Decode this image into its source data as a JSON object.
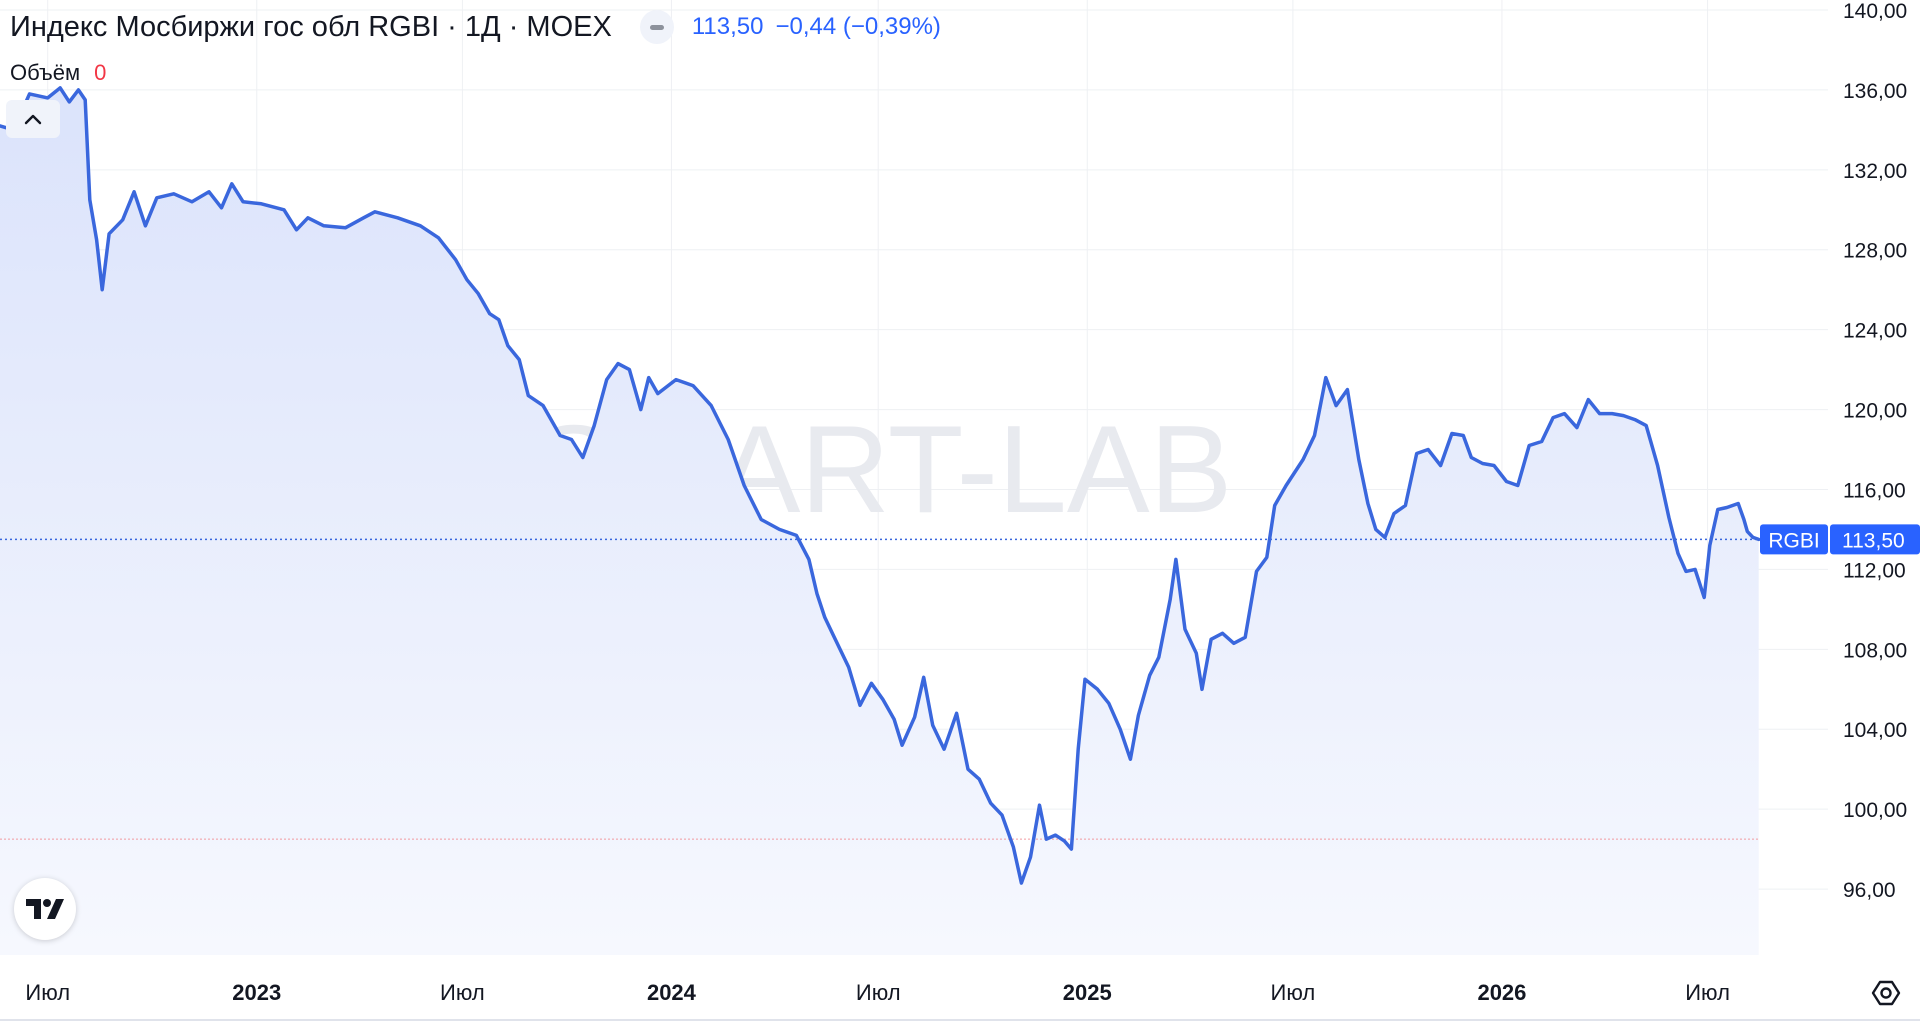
{
  "legend": {
    "title": "Индекс Мосбиржи гос обл RGBI · 1Д · MOEX",
    "last_price": "113,50",
    "change": "−0,44 (−0,39%)",
    "volume_label": "Объём",
    "volume_value": "0"
  },
  "watermark": "SMART-LAB",
  "price_axis": {
    "labels": [
      "140,00",
      "136,00",
      "132,00",
      "128,00",
      "124,00",
      "120,00",
      "116,00",
      "112,00",
      "108,00",
      "104,00",
      "100,00",
      "96,00"
    ],
    "current_symbol": "RGBI",
    "current_value": "113,50"
  },
  "time_axis": {
    "labels": [
      {
        "text": "Июл",
        "bold": false
      },
      {
        "text": "2023",
        "bold": true
      },
      {
        "text": "Июл",
        "bold": false
      },
      {
        "text": "2024",
        "bold": true
      },
      {
        "text": "Июл",
        "bold": false
      },
      {
        "text": "2025",
        "bold": true
      },
      {
        "text": "Июл",
        "bold": false
      },
      {
        "text": "2026",
        "bold": true
      },
      {
        "text": "Июл",
        "bold": false
      }
    ]
  },
  "colors": {
    "line": "#3a67dd",
    "fill_top": "#dfe6fb",
    "grid": "#eef0f3",
    "current_tag": "#2962ff",
    "reference_line": "#f29aa0",
    "text": "#131722",
    "axis_text": "#5d606b"
  },
  "icons": {
    "collapse": "chevron-up-icon",
    "logo": "tradingview-logo-icon",
    "settings": "settings-icon"
  },
  "chart_data": {
    "type": "area",
    "symbol": "RGBI",
    "interval": "1D",
    "exchange": "MOEX",
    "reference_price": 98.5,
    "ylim": [
      92.7,
      140.5
    ],
    "yticks": [
      140,
      136,
      132,
      128,
      124,
      120,
      116,
      112,
      108,
      104,
      100,
      96
    ],
    "xlim": [
      "2022-05-20",
      "2026-10-15"
    ],
    "xticks": [
      "2022-07-01",
      "2023-01-01",
      "2023-07-01",
      "2024-01-01",
      "2024-07-01",
      "2025-01-01",
      "2025-07-01",
      "2026-01-01",
      "2026-07-01"
    ],
    "series": [
      {
        "points": [
          [
            "2022-05-20",
            134.2
          ],
          [
            "2022-06-01",
            134.0
          ],
          [
            "2022-06-15",
            135.8
          ],
          [
            "2022-07-01",
            135.6
          ],
          [
            "2022-07-12",
            136.1
          ],
          [
            "2022-07-20",
            135.4
          ],
          [
            "2022-07-28",
            136.0
          ],
          [
            "2022-08-03",
            135.5
          ],
          [
            "2022-08-07",
            130.5
          ],
          [
            "2022-08-13",
            128.5
          ],
          [
            "2022-08-18",
            126.0
          ],
          [
            "2022-08-24",
            128.8
          ],
          [
            "2022-09-05",
            129.5
          ],
          [
            "2022-09-15",
            130.9
          ],
          [
            "2022-09-25",
            129.2
          ],
          [
            "2022-10-05",
            130.6
          ],
          [
            "2022-10-20",
            130.8
          ],
          [
            "2022-11-05",
            130.4
          ],
          [
            "2022-11-20",
            130.9
          ],
          [
            "2022-12-01",
            130.1
          ],
          [
            "2022-12-10",
            131.3
          ],
          [
            "2022-12-20",
            130.4
          ],
          [
            "2023-01-05",
            130.3
          ],
          [
            "2023-01-25",
            130.0
          ],
          [
            "2023-02-05",
            129.0
          ],
          [
            "2023-02-15",
            129.6
          ],
          [
            "2023-03-01",
            129.2
          ],
          [
            "2023-03-20",
            129.1
          ],
          [
            "2023-04-05",
            129.6
          ],
          [
            "2023-04-15",
            129.9
          ],
          [
            "2023-05-05",
            129.6
          ],
          [
            "2023-05-25",
            129.2
          ],
          [
            "2023-06-10",
            128.6
          ],
          [
            "2023-06-25",
            127.5
          ],
          [
            "2023-07-05",
            126.5
          ],
          [
            "2023-07-15",
            125.8
          ],
          [
            "2023-07-25",
            124.8
          ],
          [
            "2023-08-02",
            124.5
          ],
          [
            "2023-08-10",
            123.2
          ],
          [
            "2023-08-20",
            122.5
          ],
          [
            "2023-08-28",
            120.7
          ],
          [
            "2023-09-10",
            120.2
          ],
          [
            "2023-09-25",
            118.7
          ],
          [
            "2023-10-05",
            118.5
          ],
          [
            "2023-10-15",
            117.6
          ],
          [
            "2023-10-25",
            119.2
          ],
          [
            "2023-11-05",
            121.5
          ],
          [
            "2023-11-15",
            122.3
          ],
          [
            "2023-11-25",
            122.0
          ],
          [
            "2023-12-05",
            120.0
          ],
          [
            "2023-12-12",
            121.6
          ],
          [
            "2023-12-20",
            120.8
          ],
          [
            "2024-01-05",
            121.5
          ],
          [
            "2024-01-20",
            121.2
          ],
          [
            "2024-02-05",
            120.2
          ],
          [
            "2024-02-20",
            118.5
          ],
          [
            "2024-03-05",
            116.2
          ],
          [
            "2024-03-20",
            114.5
          ],
          [
            "2024-04-05",
            114.0
          ],
          [
            "2024-04-20",
            113.7
          ],
          [
            "2024-05-01",
            112.5
          ],
          [
            "2024-05-08",
            110.8
          ],
          [
            "2024-05-15",
            109.6
          ],
          [
            "2024-05-25",
            108.4
          ],
          [
            "2024-06-05",
            107.1
          ],
          [
            "2024-06-15",
            105.2
          ],
          [
            "2024-06-25",
            106.3
          ],
          [
            "2024-07-05",
            105.5
          ],
          [
            "2024-07-15",
            104.5
          ],
          [
            "2024-07-22",
            103.2
          ],
          [
            "2024-08-02",
            104.6
          ],
          [
            "2024-08-10",
            106.6
          ],
          [
            "2024-08-18",
            104.2
          ],
          [
            "2024-08-28",
            103.0
          ],
          [
            "2024-09-08",
            104.8
          ],
          [
            "2024-09-18",
            102.0
          ],
          [
            "2024-09-28",
            101.5
          ],
          [
            "2024-10-08",
            100.3
          ],
          [
            "2024-10-18",
            99.7
          ],
          [
            "2024-10-28",
            98.1
          ],
          [
            "2024-11-04",
            96.3
          ],
          [
            "2024-11-12",
            97.6
          ],
          [
            "2024-11-20",
            100.2
          ],
          [
            "2024-11-26",
            98.5
          ],
          [
            "2024-12-04",
            98.7
          ],
          [
            "2024-12-12",
            98.4
          ],
          [
            "2024-12-18",
            98.0
          ],
          [
            "2024-12-24",
            103.0
          ],
          [
            "2024-12-30",
            106.5
          ],
          [
            "2025-01-10",
            106.0
          ],
          [
            "2025-01-20",
            105.3
          ],
          [
            "2025-01-30",
            104.0
          ],
          [
            "2025-02-08",
            102.5
          ],
          [
            "2025-02-15",
            104.7
          ],
          [
            "2025-02-25",
            106.7
          ],
          [
            "2025-03-05",
            107.6
          ],
          [
            "2025-03-15",
            110.5
          ],
          [
            "2025-03-20",
            112.5
          ],
          [
            "2025-03-28",
            109.0
          ],
          [
            "2025-04-07",
            107.8
          ],
          [
            "2025-04-12",
            106.0
          ],
          [
            "2025-04-20",
            108.5
          ],
          [
            "2025-04-30",
            108.8
          ],
          [
            "2025-05-10",
            108.3
          ],
          [
            "2025-05-20",
            108.6
          ],
          [
            "2025-05-30",
            111.9
          ],
          [
            "2025-06-08",
            112.6
          ],
          [
            "2025-06-15",
            115.2
          ],
          [
            "2025-06-25",
            116.2
          ],
          [
            "2025-07-10",
            117.5
          ],
          [
            "2025-07-20",
            118.7
          ],
          [
            "2025-07-30",
            121.6
          ],
          [
            "2025-08-08",
            120.2
          ],
          [
            "2025-08-18",
            121.0
          ],
          [
            "2025-08-28",
            117.5
          ],
          [
            "2025-09-05",
            115.3
          ],
          [
            "2025-09-12",
            114.0
          ],
          [
            "2025-09-20",
            113.6
          ],
          [
            "2025-09-28",
            114.8
          ],
          [
            "2025-10-08",
            115.2
          ],
          [
            "2025-10-18",
            117.8
          ],
          [
            "2025-10-28",
            118.0
          ],
          [
            "2025-11-08",
            117.2
          ],
          [
            "2025-11-18",
            118.8
          ],
          [
            "2025-11-28",
            118.7
          ],
          [
            "2025-12-05",
            117.6
          ],
          [
            "2025-12-15",
            117.3
          ],
          [
            "2025-12-25",
            117.2
          ],
          [
            "2026-01-05",
            116.4
          ],
          [
            "2026-01-15",
            116.2
          ],
          [
            "2026-01-25",
            118.2
          ],
          [
            "2026-02-05",
            118.4
          ],
          [
            "2026-02-15",
            119.6
          ],
          [
            "2026-02-25",
            119.8
          ],
          [
            "2026-03-08",
            119.1
          ],
          [
            "2026-03-18",
            120.5
          ],
          [
            "2026-03-28",
            119.8
          ],
          [
            "2026-04-08",
            119.8
          ],
          [
            "2026-04-18",
            119.7
          ],
          [
            "2026-04-28",
            119.5
          ],
          [
            "2026-05-08",
            119.2
          ],
          [
            "2026-05-18",
            117.2
          ],
          [
            "2026-05-28",
            114.6
          ],
          [
            "2026-06-05",
            112.8
          ],
          [
            "2026-06-12",
            111.9
          ],
          [
            "2026-06-20",
            112.0
          ],
          [
            "2026-06-28",
            110.6
          ],
          [
            "2026-07-03",
            113.2
          ],
          [
            "2026-07-10",
            115.0
          ],
          [
            "2026-07-18",
            115.1
          ],
          [
            "2026-07-28",
            115.3
          ],
          [
            "2026-08-02",
            114.5
          ],
          [
            "2026-08-05",
            113.9
          ],
          [
            "2026-08-10",
            113.6
          ],
          [
            "2026-08-15",
            113.5
          ]
        ]
      }
    ]
  }
}
